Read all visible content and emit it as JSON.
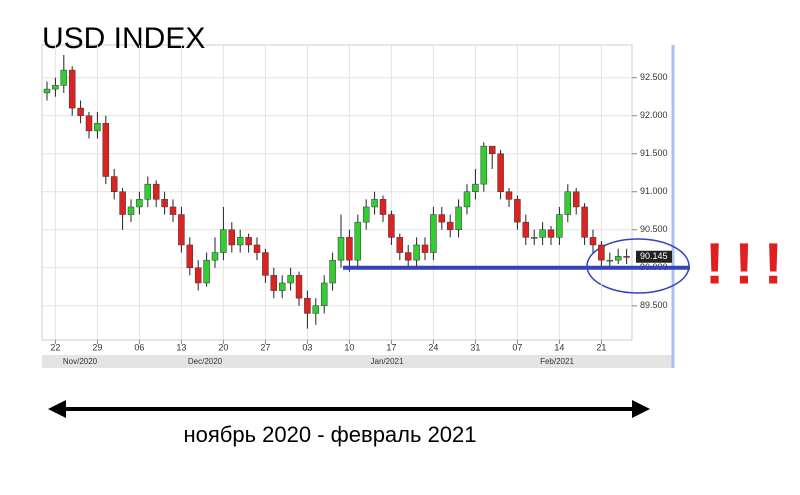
{
  "chart_data": {
    "type": "candlestick",
    "title": "USD INDEX",
    "caption": "ноябрь 2020 - февраль 2021",
    "annotation": "!!!",
    "categories": [
      null,
      "22",
      null,
      null,
      null,
      null,
      "29",
      null,
      null,
      null,
      null,
      "06",
      null,
      null,
      null,
      null,
      "13",
      null,
      null,
      null,
      null,
      "20",
      null,
      null,
      null,
      null,
      "27",
      null,
      null,
      null,
      null,
      "03",
      null,
      null,
      null,
      null,
      "10",
      null,
      null,
      null,
      null,
      "17",
      null,
      null,
      null,
      null,
      "24",
      null,
      null,
      null,
      null,
      "31",
      null,
      null,
      null,
      null,
      "07",
      null,
      null,
      null,
      null,
      "14",
      null,
      null,
      null,
      null,
      "21",
      null,
      null,
      null
    ],
    "months": [
      "Nov/2020",
      "Dec/2020",
      "Jan/2021",
      "Feb/2021"
    ],
    "open": [
      92.3,
      92.35,
      92.4,
      92.6,
      92.1,
      92.0,
      91.8,
      91.9,
      91.2,
      91.0,
      90.7,
      90.8,
      90.9,
      91.1,
      90.9,
      90.8,
      90.7,
      90.3,
      90.0,
      89.8,
      90.1,
      90.2,
      90.5,
      90.3,
      90.4,
      90.3,
      90.2,
      89.9,
      89.7,
      89.8,
      89.9,
      89.6,
      89.4,
      89.5,
      89.8,
      90.1,
      90.4,
      90.1,
      90.6,
      90.8,
      90.9,
      90.7,
      90.4,
      90.2,
      90.1,
      90.3,
      90.2,
      90.7,
      90.6,
      90.5,
      90.8,
      91.0,
      91.1,
      91.6,
      91.5,
      91.0,
      90.9,
      90.6,
      90.4,
      90.4,
      90.5,
      90.4,
      90.7,
      91.0,
      90.8,
      90.4,
      90.3,
      90.1,
      90.1,
      90.15
    ],
    "high": [
      92.45,
      92.5,
      92.8,
      92.65,
      92.2,
      92.05,
      92.05,
      92.0,
      91.3,
      91.05,
      90.9,
      91.0,
      91.2,
      91.15,
      91.0,
      90.9,
      90.8,
      90.4,
      90.1,
      90.2,
      90.4,
      90.8,
      90.6,
      90.5,
      90.45,
      90.4,
      90.25,
      90.0,
      89.9,
      90.0,
      89.95,
      89.7,
      89.6,
      89.9,
      90.2,
      90.7,
      90.5,
      90.7,
      90.9,
      91.0,
      90.95,
      90.75,
      90.45,
      90.3,
      90.4,
      90.4,
      90.8,
      90.8,
      90.7,
      90.9,
      91.1,
      91.3,
      91.65,
      91.6,
      91.55,
      91.05,
      90.95,
      90.7,
      90.5,
      90.6,
      90.55,
      90.8,
      91.1,
      91.05,
      90.85,
      90.5,
      90.35,
      90.2,
      90.25,
      90.25
    ],
    "low": [
      92.2,
      92.25,
      92.3,
      92.0,
      91.9,
      91.7,
      91.7,
      91.1,
      90.9,
      90.5,
      90.6,
      90.7,
      90.8,
      90.8,
      90.7,
      90.6,
      90.2,
      89.9,
      89.7,
      89.75,
      90.0,
      90.1,
      90.2,
      90.2,
      90.2,
      90.1,
      89.8,
      89.6,
      89.6,
      89.7,
      89.5,
      89.2,
      89.25,
      89.4,
      89.7,
      90.0,
      89.95,
      90.0,
      90.5,
      90.7,
      90.6,
      90.3,
      90.1,
      90.0,
      90.0,
      90.1,
      90.1,
      90.5,
      90.4,
      90.4,
      90.7,
      90.9,
      91.0,
      91.3,
      90.9,
      90.8,
      90.5,
      90.3,
      90.3,
      90.3,
      90.3,
      90.3,
      90.6,
      90.7,
      90.3,
      90.2,
      90.0,
      90.0,
      90.05,
      90.05
    ],
    "close": [
      92.35,
      92.4,
      92.6,
      92.1,
      92.0,
      91.8,
      91.9,
      91.2,
      91.0,
      90.7,
      90.8,
      90.9,
      91.1,
      90.9,
      90.8,
      90.7,
      90.3,
      90.0,
      89.8,
      90.1,
      90.2,
      90.5,
      90.3,
      90.4,
      90.3,
      90.2,
      89.9,
      89.7,
      89.8,
      89.9,
      89.6,
      89.4,
      89.5,
      89.8,
      90.1,
      90.4,
      90.1,
      90.6,
      90.8,
      90.9,
      90.7,
      90.4,
      90.2,
      90.1,
      90.3,
      90.2,
      90.7,
      90.6,
      90.5,
      90.8,
      91.0,
      91.1,
      91.6,
      91.5,
      91.0,
      90.9,
      90.6,
      90.4,
      90.4,
      90.5,
      90.4,
      90.7,
      91.0,
      90.8,
      90.4,
      90.3,
      90.1,
      90.1,
      90.15,
      90.145
    ],
    "up_color": "#33cc33",
    "down_color": "#dd2222",
    "last_price": 90.145,
    "support_level": 90,
    "support_color": "#3344bb",
    "ylim": [
      89.05,
      92.93
    ],
    "yticks": [
      {
        "value": 89.5,
        "label": "89.500"
      },
      {
        "value": 90,
        "label": "90.000"
      },
      {
        "value": 90.5,
        "label": "90.500"
      },
      {
        "value": 91,
        "label": "91.000"
      },
      {
        "value": 91.5,
        "label": "91.500"
      },
      {
        "value": 92,
        "label": "92.000"
      },
      {
        "value": 92.5,
        "label": "92.500"
      }
    ],
    "grid": true
  }
}
